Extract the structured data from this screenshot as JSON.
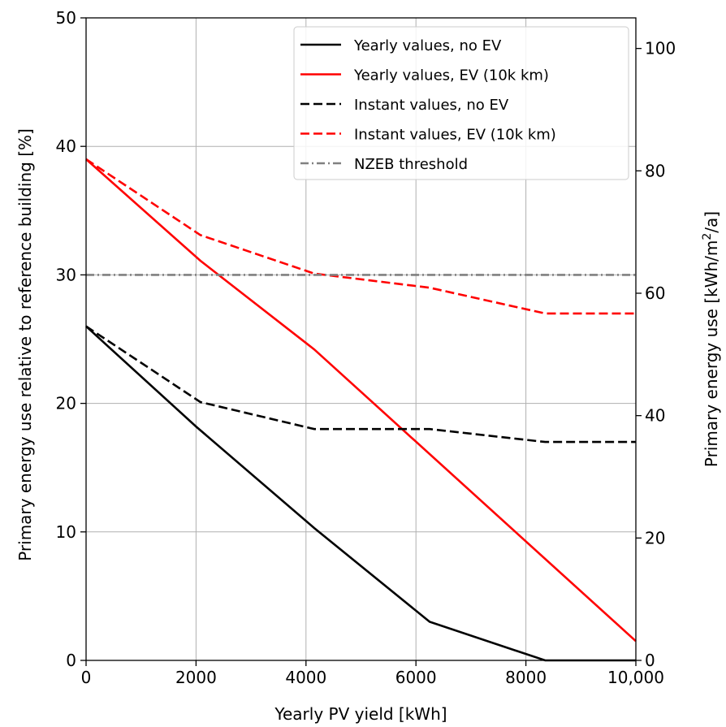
{
  "chart_data": {
    "type": "line",
    "xlabel": "Yearly PV yield [kWh]",
    "ylabel": "Primary energy use relative to reference building [%]",
    "ylabel_right_prefix": "Primary energy use [kWh/m",
    "ylabel_right_sup": "2",
    "ylabel_right_suffix": "/a]",
    "xlim": [
      0,
      10000
    ],
    "ylim": [
      0,
      50
    ],
    "ylim_right": [
      0,
      105
    ],
    "x_ticks": [
      0,
      2000,
      4000,
      6000,
      8000,
      10000
    ],
    "x_tick_labels": [
      "0",
      "2000",
      "4000",
      "6000",
      "8000",
      "10,000"
    ],
    "y_ticks": [
      0,
      10,
      20,
      30,
      40,
      50
    ],
    "y_tick_labels": [
      "0",
      "10",
      "20",
      "30",
      "40",
      "50"
    ],
    "y_right_ticks": [
      0,
      20,
      40,
      60,
      80,
      100
    ],
    "y_right_tick_labels": [
      "0",
      "20",
      "40",
      "60",
      "80",
      "100"
    ],
    "grid": true,
    "legend_position": "top-right",
    "series": [
      {
        "name": "Yearly values, no EV",
        "color": "#000000",
        "dash": "solid",
        "x": [
          0,
          2000,
          4150,
          6250,
          8350,
          10000
        ],
        "y": [
          26,
          18.2,
          10.3,
          3.0,
          0,
          0
        ]
      },
      {
        "name": "Yearly values, EV (10k km)",
        "color": "#ff0000",
        "dash": "solid",
        "x": [
          0,
          2080,
          4150,
          10000
        ],
        "y": [
          39,
          31.1,
          24.2,
          1.5
        ]
      },
      {
        "name": "Instant values, no EV",
        "color": "#000000",
        "dash": "dashed",
        "x": [
          0,
          2080,
          4150,
          6250,
          8350,
          10000
        ],
        "y": [
          26,
          20.1,
          18.0,
          18.0,
          17.0,
          17.0
        ]
      },
      {
        "name": "Instant values, EV (10k km)",
        "color": "#ff0000",
        "dash": "dashed",
        "x": [
          0,
          2080,
          4150,
          6250,
          8350,
          10000
        ],
        "y": [
          39,
          33.1,
          30.1,
          29.0,
          27.0,
          27.0
        ]
      },
      {
        "name": "NZEB threshold",
        "color": "#808080",
        "dash": "dashdot",
        "x": [
          0,
          10000
        ],
        "y": [
          30,
          30
        ]
      }
    ]
  }
}
